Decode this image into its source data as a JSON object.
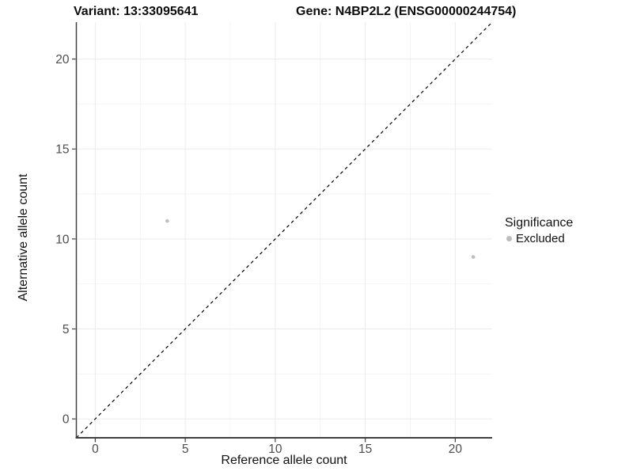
{
  "figure": {
    "title_variant": "Variant: 13:33095641",
    "title_gene": "Gene: N4BP2L2 (ENSG00000244754)"
  },
  "legend": {
    "title": "Significance",
    "items": [
      {
        "label": "Excluded",
        "color": "#bebebe"
      }
    ]
  },
  "chart_data": {
    "type": "scatter",
    "title": "Variant: 13:33095641   Gene: N4BP2L2 (ENSG00000244754)",
    "xlabel": "Reference allele count",
    "ylabel": "Alternative allele count",
    "xlim": [
      -1.05,
      22.05
    ],
    "ylim": [
      -1.05,
      22.05
    ],
    "x_ticks": [
      0,
      5,
      10,
      15,
      20
    ],
    "y_ticks": [
      0,
      5,
      10,
      15,
      20
    ],
    "x_minor_ticks": [
      2.5,
      7.5,
      12.5,
      17.5
    ],
    "y_minor_ticks": [
      2.5,
      7.5,
      12.5,
      17.5
    ],
    "grid": "major+minor",
    "legend_position": "right",
    "series": [
      {
        "name": "Excluded",
        "color": "#bebebe",
        "points": [
          {
            "x": 4,
            "y": 11
          },
          {
            "x": 21,
            "y": 9
          }
        ]
      }
    ],
    "reference_line": {
      "type": "identity",
      "style": "dashed",
      "color": "#000000",
      "from": [
        -1.05,
        -1.05
      ],
      "to": [
        22.05,
        22.05
      ]
    },
    "colors": {
      "grid_major": "#ebebeb",
      "grid_minor": "#f4f4f4",
      "axis_line": "#404040",
      "tick_label": "#4d4d4d"
    }
  }
}
